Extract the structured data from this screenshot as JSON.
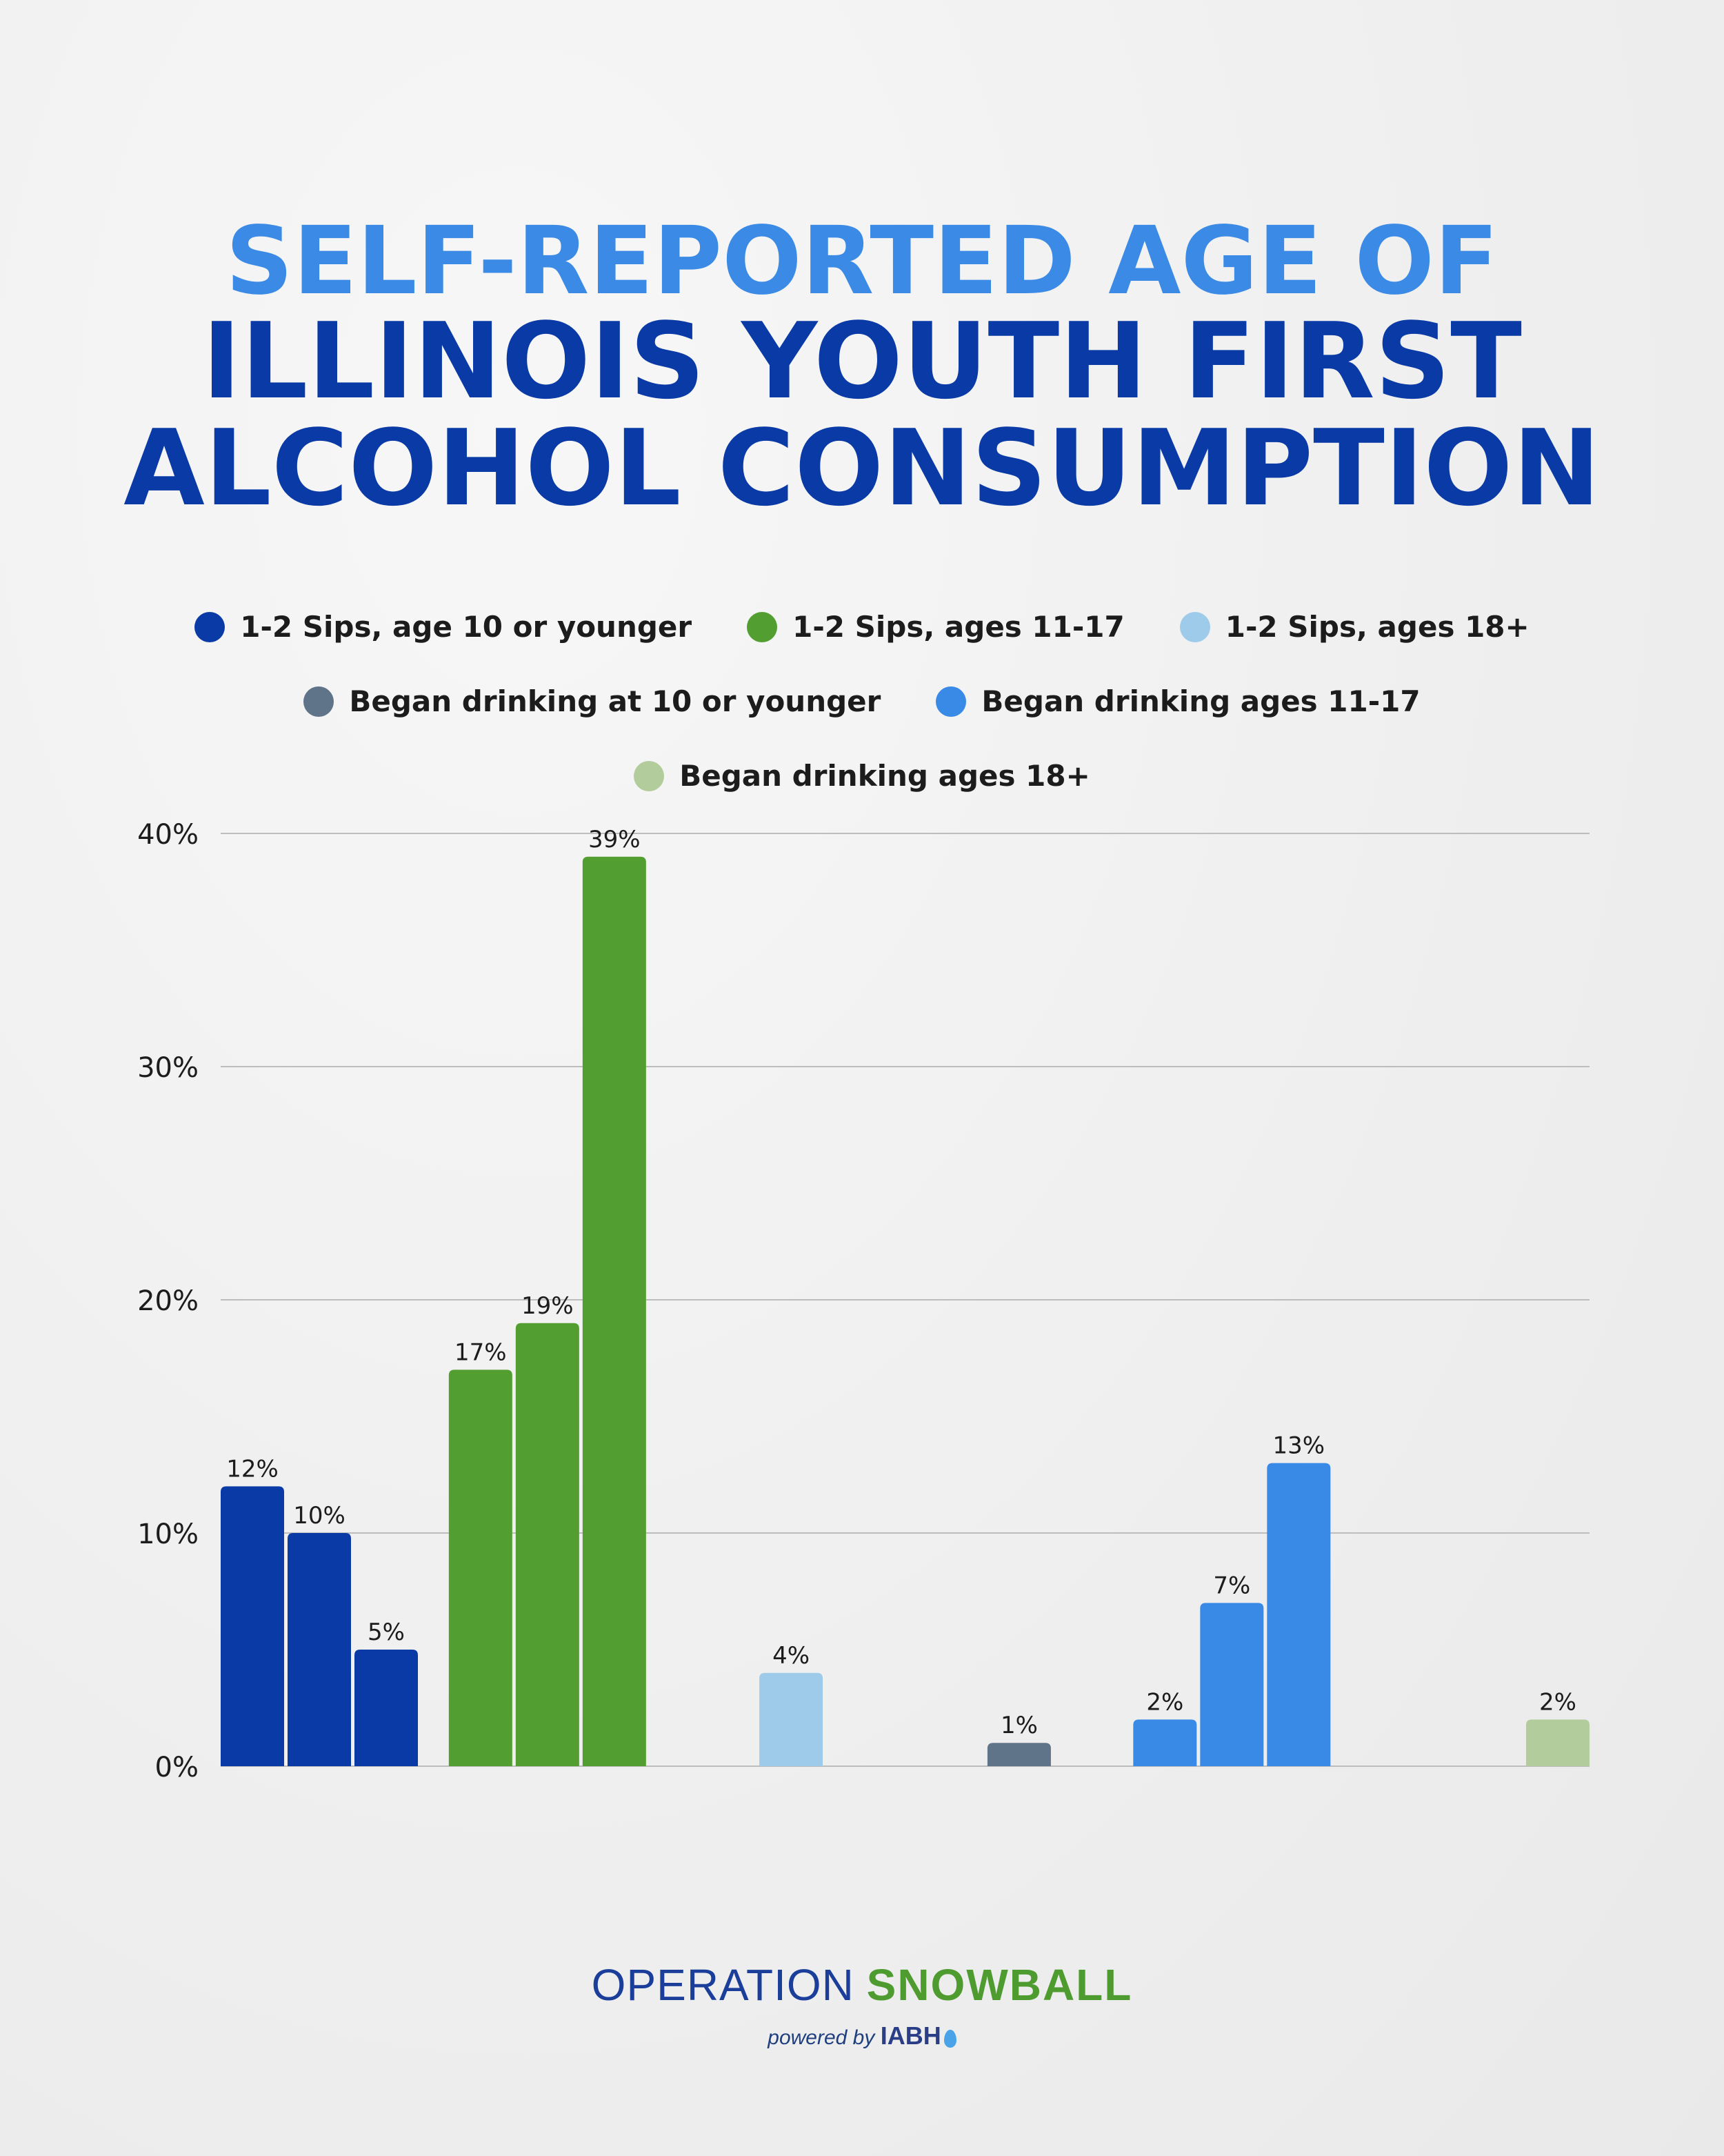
{
  "title": {
    "line1": "SELF-REPORTED AGE OF",
    "line2": "ILLINOIS YOUTH FIRST",
    "line3": "ALCOHOL CONSUMPTION"
  },
  "legend": [
    {
      "label": "1-2 Sips, age 10 or younger",
      "color": "#0a3aa6"
    },
    {
      "label": "1-2 Sips, ages 11-17",
      "color": "#529e30"
    },
    {
      "label": "1-2 Sips, ages 18+",
      "color": "#9ecbea"
    },
    {
      "label": "Began drinking at 10 or younger",
      "color": "#5f7389"
    },
    {
      "label": "Began drinking ages 11-17",
      "color": "#398ae6"
    },
    {
      "label": "Began drinking ages 18+",
      "color": "#b2cc9c"
    }
  ],
  "chart_data": {
    "type": "bar",
    "ylim": [
      0,
      40
    ],
    "yticks": [
      "0%",
      "10%",
      "20%",
      "30%",
      "40%"
    ],
    "grid": true,
    "legend_position": "top",
    "series": [
      {
        "name": "1-2 Sips, age 10 or younger",
        "color": "#0a3aa6",
        "values": [
          12,
          10,
          5
        ],
        "labels": [
          "12%",
          "10%",
          "5%"
        ]
      },
      {
        "name": "1-2 Sips, ages 11-17",
        "color": "#529e30",
        "values": [
          17,
          19,
          39
        ],
        "labels": [
          "17%",
          "19%",
          "39%"
        ]
      },
      {
        "name": "1-2 Sips, ages 18+",
        "color": "#9ecbea",
        "values": [
          4
        ],
        "labels": [
          "4%"
        ]
      },
      {
        "name": "Began drinking at 10 or younger",
        "color": "#5f7389",
        "values": [
          1
        ],
        "labels": [
          "1%"
        ]
      },
      {
        "name": "Began drinking ages 11-17",
        "color": "#398ae6",
        "values": [
          2,
          7,
          13
        ],
        "labels": [
          "2%",
          "7%",
          "13%"
        ]
      },
      {
        "name": "Began drinking ages 18+",
        "color": "#b2cc9c",
        "values": [
          2
        ],
        "labels": [
          "2%"
        ]
      }
    ]
  },
  "brand": {
    "operation": "OPERATION",
    "snowball": "SNOWBALL",
    "powered_by": "powered by",
    "iabh": "IABH"
  }
}
